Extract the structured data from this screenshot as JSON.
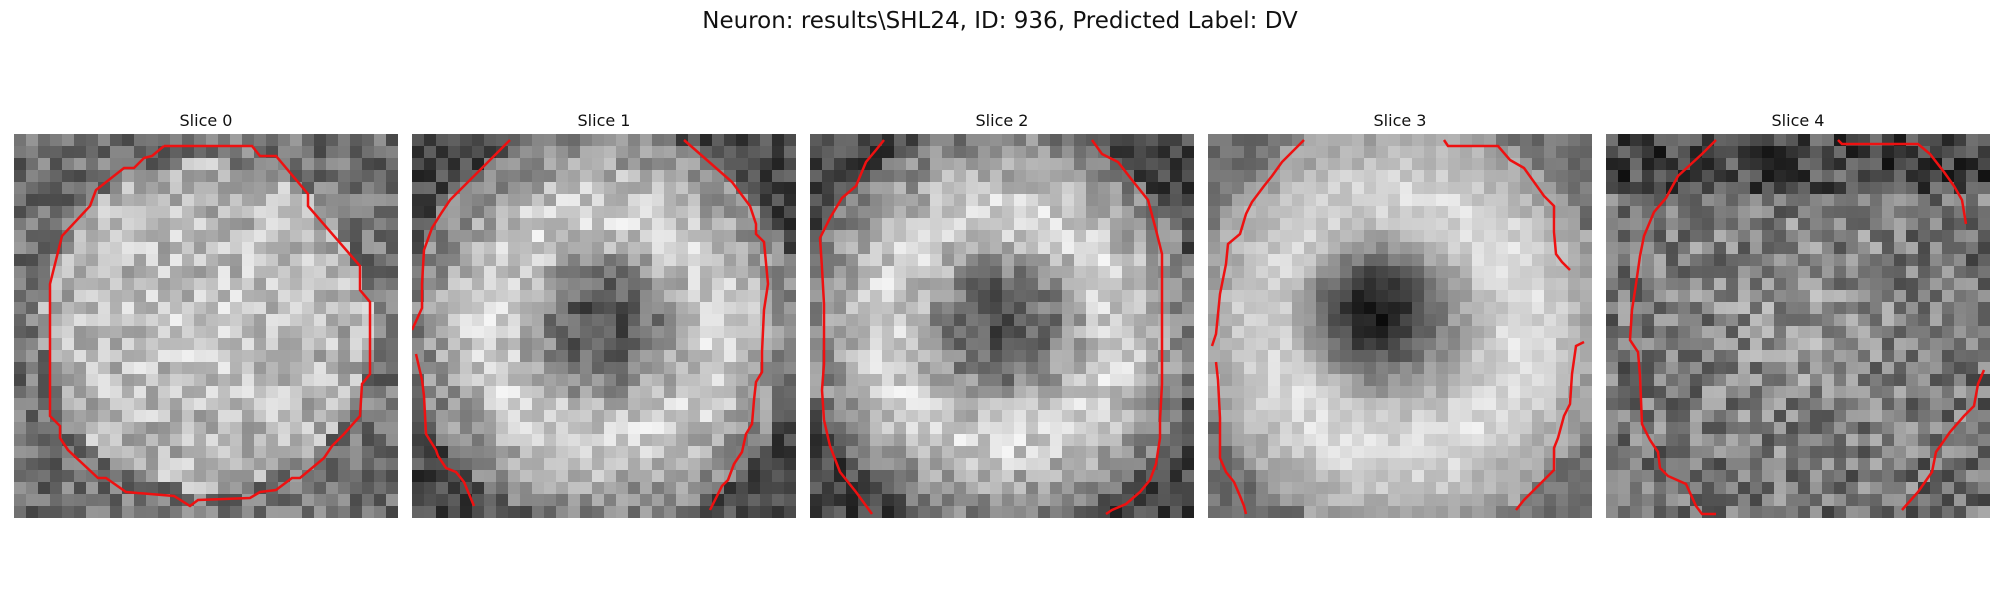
{
  "figure_title": "Neuron: results\\SHL24, ID: 936, Predicted Label: DV",
  "slices": [
    {
      "label": "Slice 0",
      "pattern": "bright-disc"
    },
    {
      "label": "Slice 1",
      "pattern": "ring-dark-center"
    },
    {
      "label": "Slice 2",
      "pattern": "ring-dark-center"
    },
    {
      "label": "Slice 3",
      "pattern": "dark-core"
    },
    {
      "label": "Slice 4",
      "pattern": "noisy-dim"
    }
  ],
  "contour_color": "#ee1111"
}
